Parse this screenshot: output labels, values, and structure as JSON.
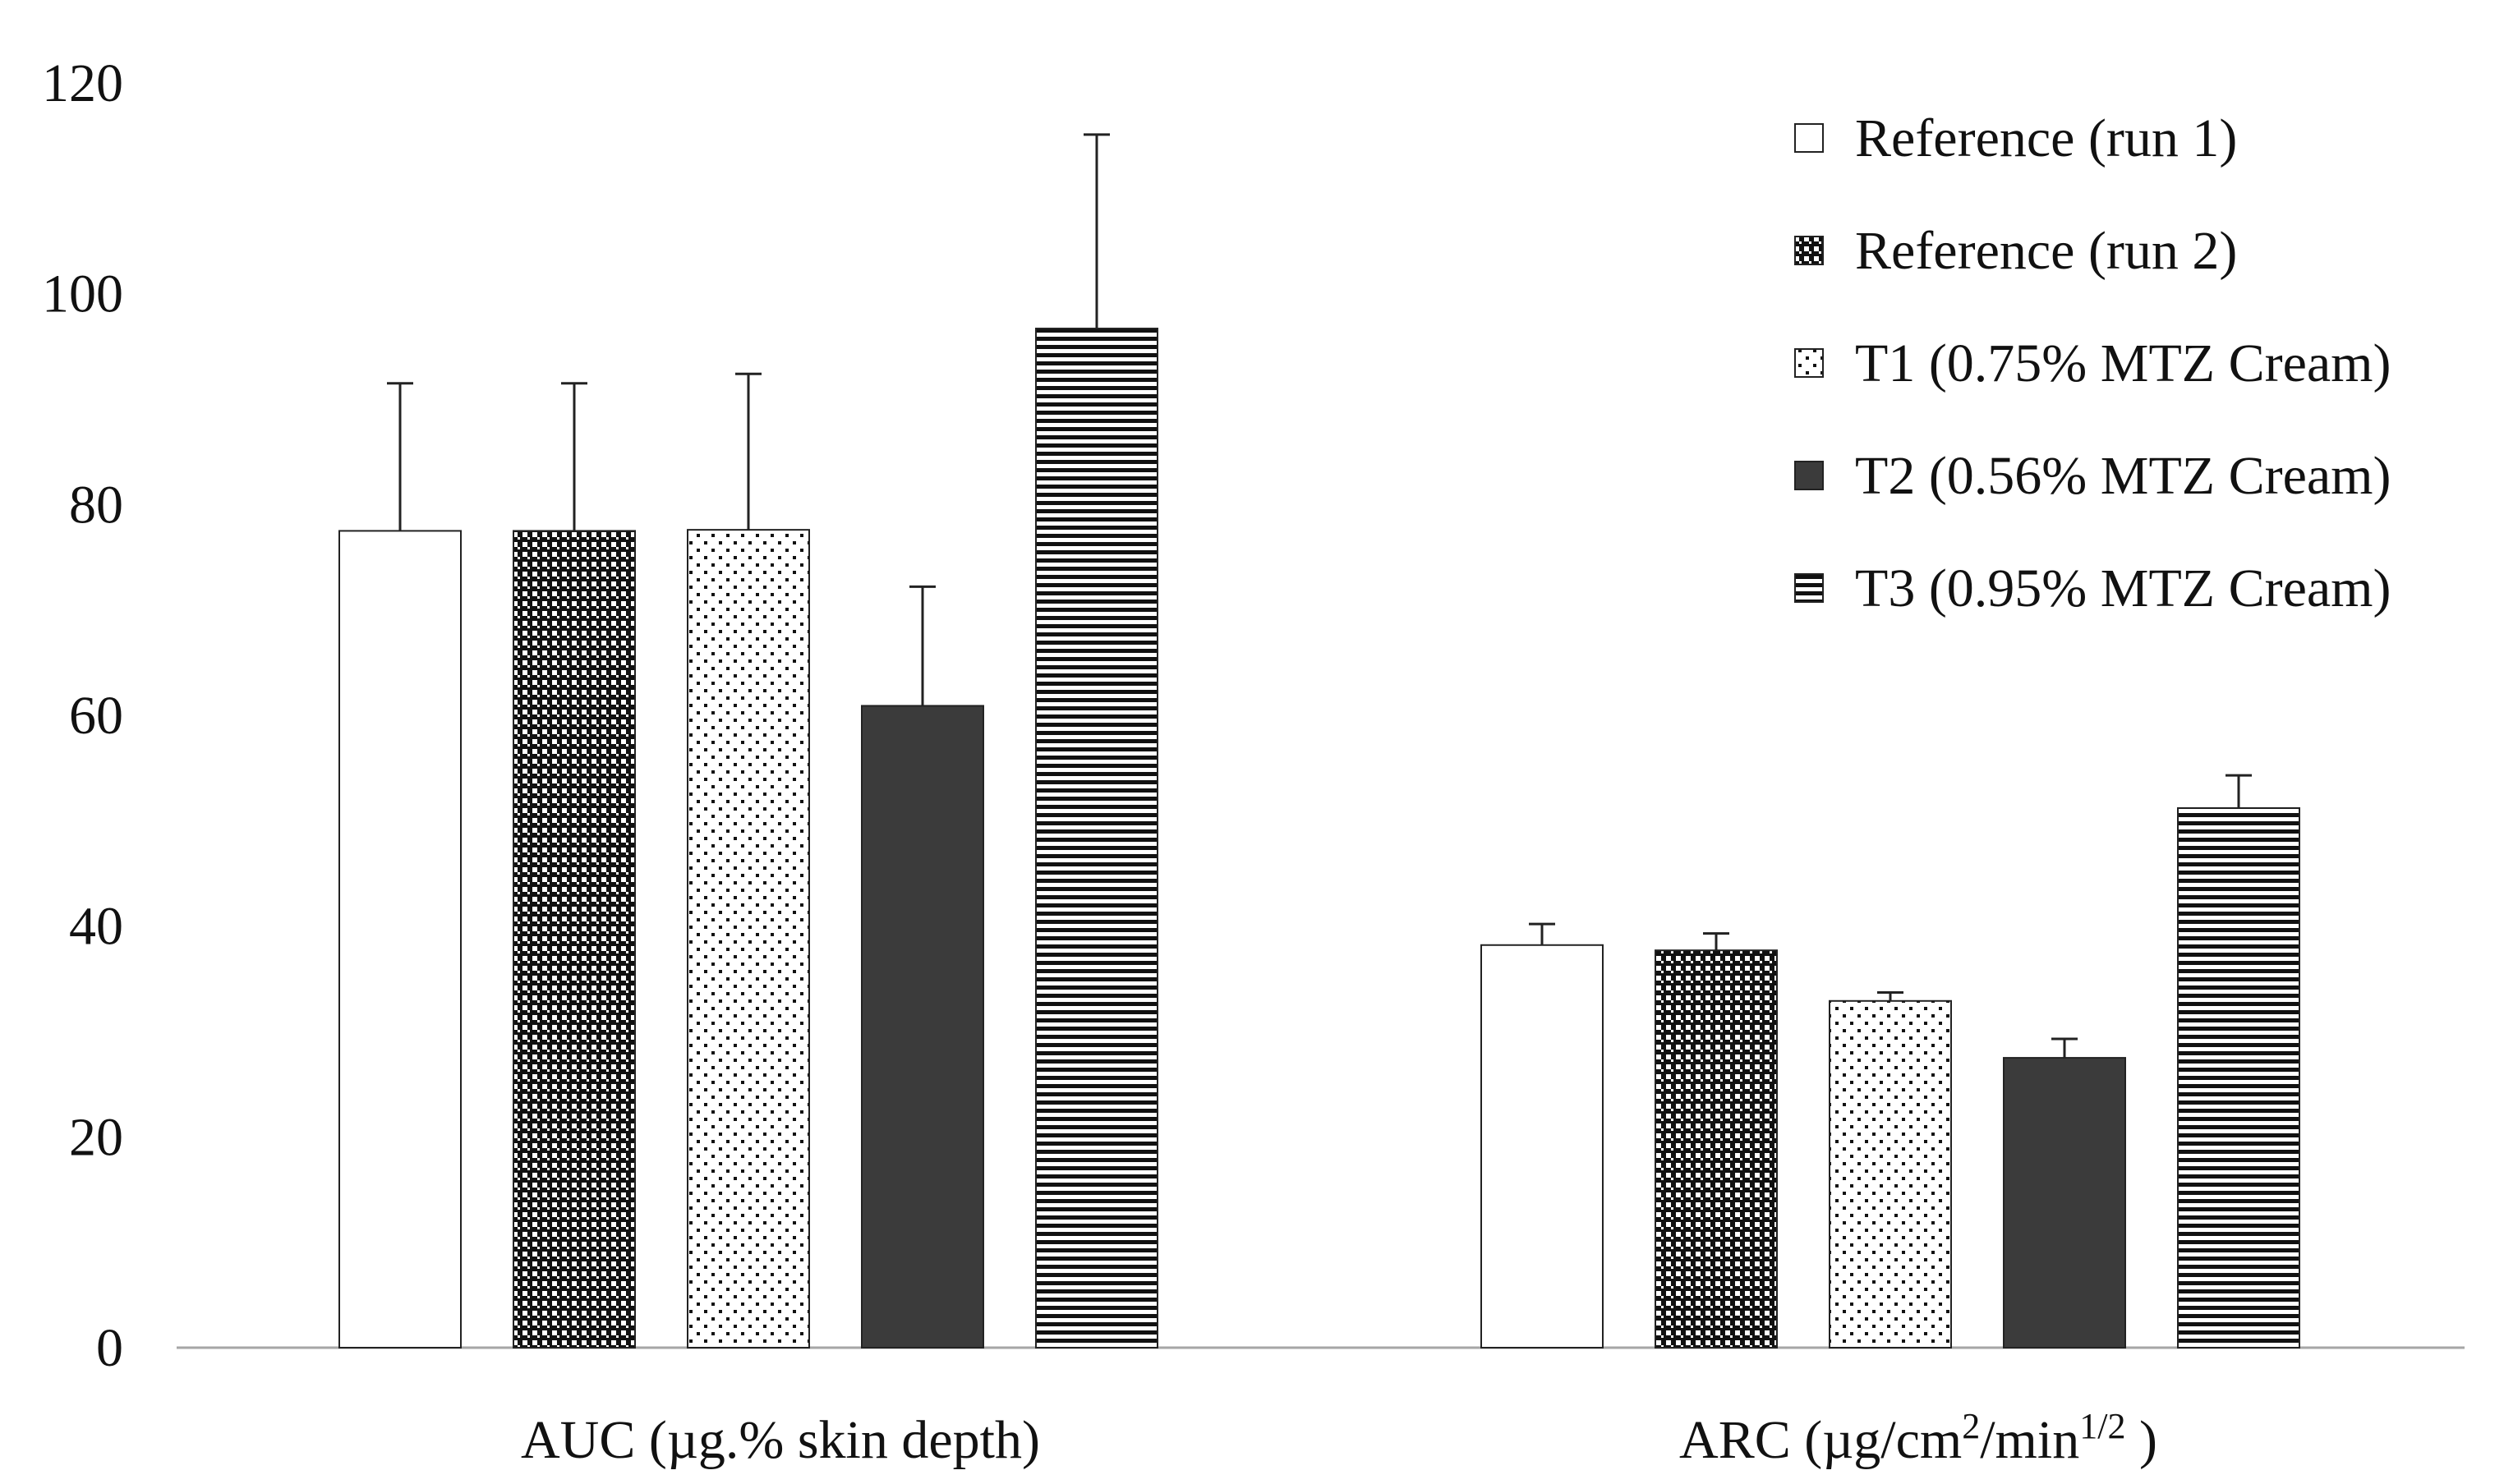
{
  "chart_data": {
    "type": "bar",
    "title": "",
    "xlabel": "",
    "ylabel": "",
    "ylim": [
      0,
      120
    ],
    "yticks": [
      0,
      20,
      40,
      60,
      80,
      100,
      120
    ],
    "grid": false,
    "legend_position": "top-right",
    "categories": [
      {
        "id": "auc",
        "label": "AUC (µg.% skin depth)"
      },
      {
        "id": "arc",
        "label_parts": [
          "ARC (µg/cm",
          "2",
          "/min",
          "1/2",
          " )"
        ]
      }
    ],
    "series": [
      {
        "name": "Reference (run 1)",
        "pattern": "white",
        "values": [
          77.5,
          38.2
        ],
        "errors": [
          14.0,
          2.0
        ]
      },
      {
        "name": "Reference (run 2)",
        "pattern": "checker",
        "values": [
          77.5,
          37.7
        ],
        "errors": [
          14.0,
          1.6
        ]
      },
      {
        "name": "T1 (0.75% MTZ Cream)",
        "pattern": "dots",
        "values": [
          77.6,
          32.9
        ],
        "errors": [
          14.8,
          0.8
        ]
      },
      {
        "name": "T2 (0.56% MTZ Cream)",
        "pattern": "solid-dark",
        "values": [
          60.9,
          27.5
        ],
        "errors": [
          11.3,
          1.8
        ]
      },
      {
        "name": "T3 (0.95% MTZ Cream)",
        "pattern": "hstripes",
        "values": [
          96.7,
          51.2
        ],
        "errors": [
          18.4,
          3.1
        ]
      }
    ],
    "colors": {
      "outline": "#222222",
      "dark_fill": "#3b3b3b",
      "axis": "#a6a6a6"
    }
  }
}
